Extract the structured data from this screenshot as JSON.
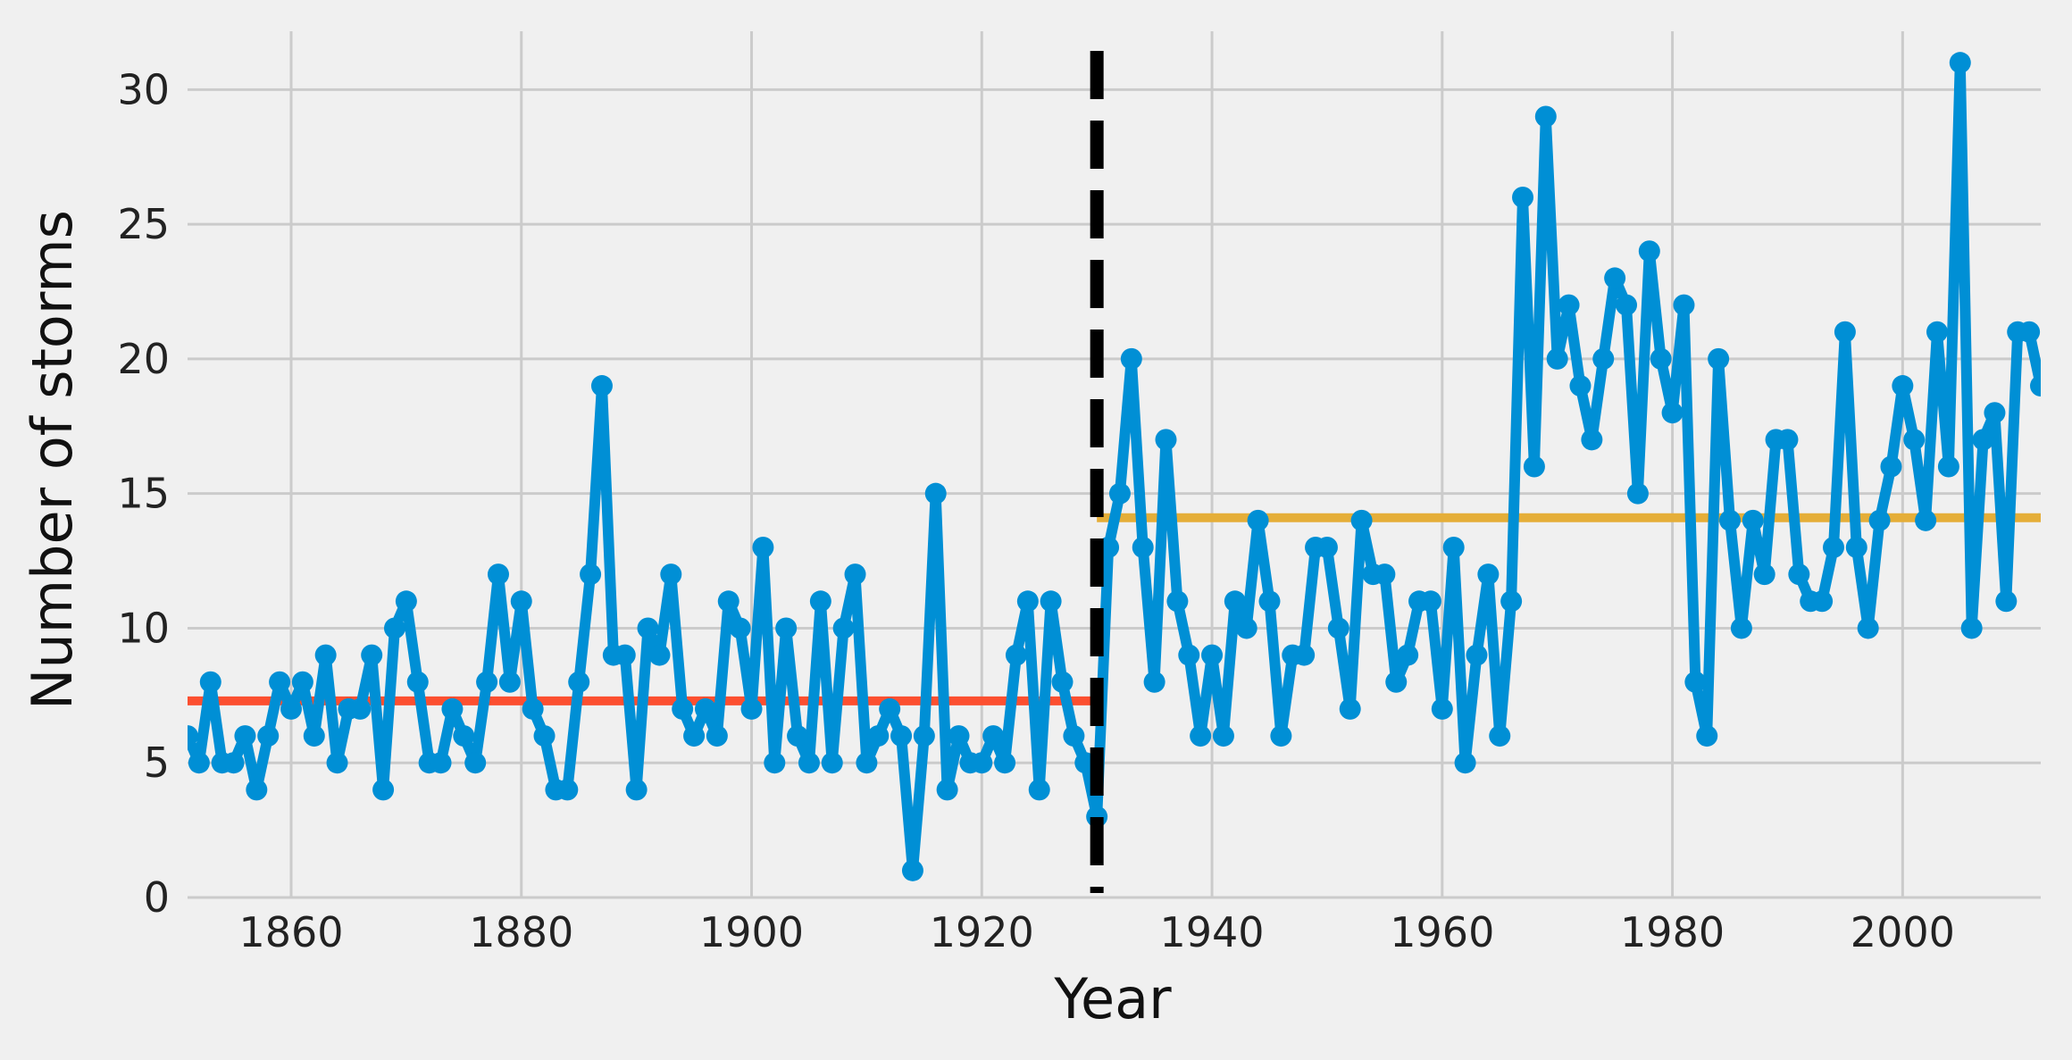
{
  "chart_data": {
    "type": "line",
    "xlabel": "Year",
    "ylabel": "Number of storms",
    "xlim": [
      1851,
      2012
    ],
    "ylim": [
      0,
      32
    ],
    "x_ticks": [
      1860,
      1880,
      1900,
      1920,
      1940,
      1960,
      1980,
      2000
    ],
    "y_ticks": [
      0,
      5,
      10,
      15,
      20,
      25,
      30
    ],
    "grid": true,
    "colors": {
      "background": "#f0f0f0",
      "grid": "#cbcbcb",
      "series": "#008fd5",
      "mean_before": "#fc4f30",
      "mean_after": "#e5ae38",
      "changepoint": "#000000"
    },
    "series": [
      {
        "x": [
          1851,
          1852,
          1853,
          1854,
          1855,
          1856,
          1857,
          1858,
          1859,
          1860,
          1861,
          1862,
          1863,
          1864,
          1865,
          1866,
          1867,
          1868,
          1869,
          1870,
          1871,
          1872,
          1873,
          1874,
          1875,
          1876,
          1877,
          1878,
          1879,
          1880,
          1881,
          1882,
          1883,
          1884,
          1885,
          1886,
          1887,
          1888,
          1889,
          1890,
          1891,
          1892,
          1893,
          1894,
          1895,
          1896,
          1897,
          1898,
          1899,
          1900,
          1901,
          1902,
          1903,
          1904,
          1905,
          1906,
          1907,
          1908,
          1909,
          1910,
          1911,
          1912,
          1913,
          1914,
          1915,
          1916,
          1917,
          1918,
          1919,
          1920,
          1921,
          1922,
          1923,
          1924,
          1925,
          1926,
          1927,
          1928,
          1929,
          1930,
          1931,
          1932,
          1933,
          1934,
          1935,
          1936,
          1937,
          1938,
          1939,
          1940,
          1941,
          1942,
          1943,
          1944,
          1945,
          1946,
          1947,
          1948,
          1949,
          1950,
          1951,
          1952,
          1953,
          1954,
          1955,
          1956,
          1957,
          1958,
          1959,
          1960,
          1961,
          1962,
          1963,
          1964,
          1965,
          1966,
          1967,
          1968,
          1969,
          1970,
          1971,
          1972,
          1973,
          1974,
          1975,
          1976,
          1977,
          1978,
          1979,
          1980,
          1981,
          1982,
          1983,
          1984,
          1985,
          1986,
          1987,
          1988,
          1989,
          1990,
          1991,
          1992,
          1993,
          1994,
          1995,
          1996,
          1997,
          1998,
          1999,
          2000,
          2001,
          2002,
          2003,
          2004,
          2005,
          2006,
          2007,
          2008,
          2009,
          2010,
          2011,
          2012
        ],
        "y": [
          6,
          5,
          8,
          5,
          5,
          6,
          4,
          6,
          8,
          7,
          8,
          6,
          9,
          5,
          7,
          7,
          9,
          4,
          10,
          11,
          8,
          5,
          5,
          7,
          6,
          5,
          8,
          12,
          8,
          11,
          7,
          6,
          4,
          4,
          8,
          12,
          19,
          9,
          9,
          4,
          10,
          9,
          12,
          7,
          6,
          7,
          6,
          11,
          10,
          7,
          13,
          5,
          10,
          6,
          5,
          11,
          5,
          10,
          12,
          5,
          6,
          7,
          6,
          1,
          6,
          15,
          4,
          6,
          5,
          5,
          6,
          5,
          9,
          11,
          4,
          11,
          8,
          6,
          5,
          3,
          13,
          15,
          20,
          13,
          8,
          17,
          11,
          9,
          6,
          9,
          6,
          11,
          10,
          14,
          11,
          6,
          9,
          9,
          13,
          13,
          10,
          7,
          14,
          12,
          12,
          8,
          9,
          11,
          11,
          7,
          13,
          5,
          9,
          12,
          6,
          11,
          26,
          16,
          29,
          20,
          22,
          19,
          17,
          20,
          23,
          22,
          15,
          24,
          20,
          18,
          22,
          8,
          6,
          20,
          14,
          10,
          14,
          12,
          17,
          17,
          12,
          11,
          11,
          13,
          21,
          13,
          10,
          14,
          16,
          19,
          17,
          14,
          21,
          16,
          31,
          10,
          17,
          18,
          11,
          21,
          21,
          19
        ]
      }
    ],
    "mean_before_1930": {
      "value": 7.3,
      "x_range": [
        1851,
        1930
      ]
    },
    "mean_after_1930": {
      "value": 14.1,
      "x_range": [
        1930,
        2012
      ]
    },
    "changepoint_year": 1930
  }
}
